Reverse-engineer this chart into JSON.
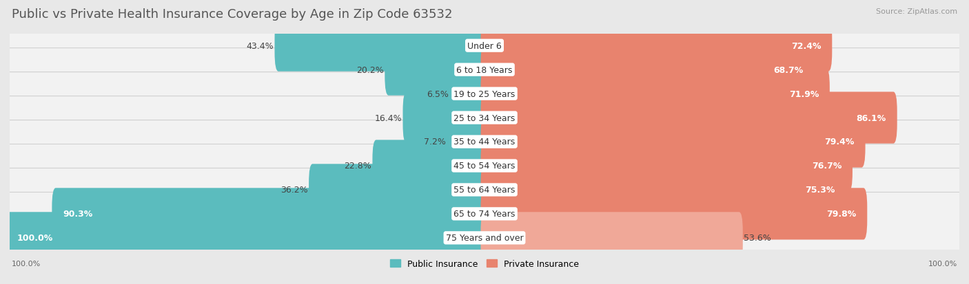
{
  "title": "Public vs Private Health Insurance Coverage by Age in Zip Code 63532",
  "source": "Source: ZipAtlas.com",
  "categories": [
    "Under 6",
    "6 to 18 Years",
    "19 to 25 Years",
    "25 to 34 Years",
    "35 to 44 Years",
    "45 to 54 Years",
    "55 to 64 Years",
    "65 to 74 Years",
    "75 Years and over"
  ],
  "public_values": [
    43.4,
    20.2,
    6.5,
    16.4,
    7.2,
    22.8,
    36.2,
    90.3,
    100.0
  ],
  "private_values": [
    72.4,
    68.7,
    71.9,
    86.1,
    79.4,
    76.7,
    75.3,
    79.8,
    53.6
  ],
  "public_color": "#5bbcbe",
  "private_color": "#e8836e",
  "private_color_light": "#f0a898",
  "public_label": "Public Insurance",
  "private_label": "Private Insurance",
  "bg_color": "#e8e8e8",
  "row_bg_color": "#f2f2f2",
  "row_shadow_color": "#d0d0d0",
  "axis_label_left": "100.0%",
  "axis_label_right": "100.0%",
  "title_fontsize": 13,
  "source_fontsize": 8,
  "value_fontsize": 9,
  "category_fontsize": 9,
  "legend_fontsize": 9
}
